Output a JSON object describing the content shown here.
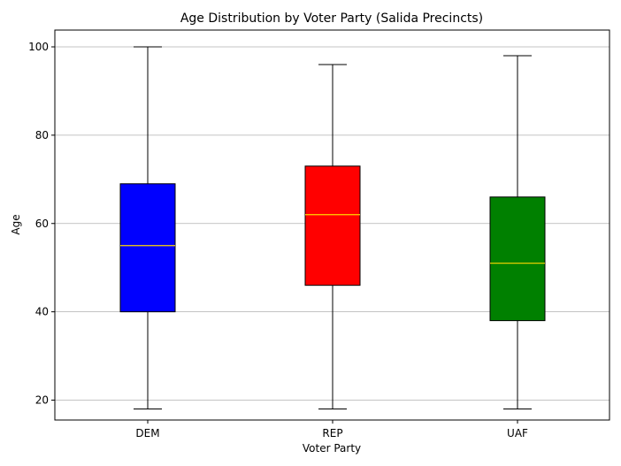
{
  "chart_data": {
    "type": "box",
    "title": "Age Distribution by Voter Party (Salida Precincts)",
    "xlabel": "Voter Party",
    "ylabel": "Age",
    "ylim": [
      14,
      105
    ],
    "yticks": [
      20,
      40,
      60,
      80,
      100
    ],
    "grid": "y",
    "categories": [
      "DEM",
      "REP",
      "UAF"
    ],
    "boxes": [
      {
        "category": "DEM",
        "whisker_low": 18,
        "q1": 40,
        "median": 55,
        "q3": 69,
        "whisker_high": 100,
        "color": "#0000ff"
      },
      {
        "category": "REP",
        "whisker_low": 18,
        "q1": 46,
        "median": 62,
        "q3": 73,
        "whisker_high": 96,
        "color": "#ff0000"
      },
      {
        "category": "UAF",
        "whisker_low": 18,
        "q1": 38,
        "median": 51,
        "q3": 66,
        "whisker_high": 98,
        "color": "#008000"
      }
    ],
    "median_color": "#ffd700"
  }
}
